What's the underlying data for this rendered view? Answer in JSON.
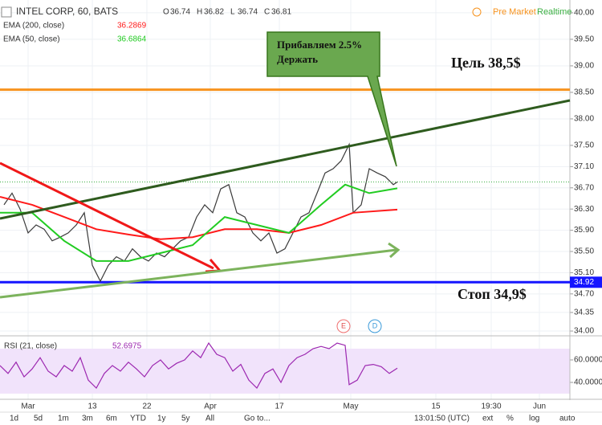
{
  "header": {
    "pre_market": "Pre Market",
    "realtime": "Realtime"
  },
  "chart_data": [
    {
      "type": "line",
      "title": "INTEL CORP, 60, BATS",
      "ohlc": [
        {
          "key": "O",
          "value": 36.74
        },
        {
          "key": "H",
          "value": 36.82
        },
        {
          "key": "L",
          "value": 36.74
        },
        {
          "key": "C",
          "value": 36.81
        }
      ],
      "xlim": [
        0,
        142
      ],
      "ylim": [
        33.94,
        40.12
      ],
      "xticks": [
        {
          "value": 7,
          "label": "Mar"
        },
        {
          "value": 23,
          "label": "13"
        },
        {
          "value": 36.6,
          "label": "22"
        },
        {
          "value": 52.4,
          "label": "Apr"
        },
        {
          "value": 69.6,
          "label": "17"
        },
        {
          "value": 87.4,
          "label": "May"
        },
        {
          "value": 108.6,
          "label": "15"
        },
        {
          "value": 122.4,
          "label": "19:30"
        },
        {
          "value": 134.4,
          "label": "Jun"
        }
      ],
      "yticks": [
        {
          "value": 40,
          "label": "40.00"
        },
        {
          "value": 39.5,
          "label": "39.50"
        },
        {
          "value": 39,
          "label": "39.00"
        },
        {
          "value": 38.5,
          "label": "38.50"
        },
        {
          "value": 38,
          "label": "38.00"
        },
        {
          "value": 37.5,
          "label": "37.50"
        },
        {
          "value": 37.1,
          "label": "37.10"
        },
        {
          "value": 36.7,
          "label": "36.70"
        },
        {
          "value": 36.3,
          "label": "36.30"
        },
        {
          "value": 35.9,
          "label": "35.90"
        },
        {
          "value": 35.5,
          "label": "35.50"
        },
        {
          "value": 35.1,
          "label": "35.10"
        },
        {
          "value": 34.7,
          "label": "34.70"
        },
        {
          "value": 34.35,
          "label": "34.35"
        },
        {
          "value": 34,
          "label": "34.00"
        }
      ],
      "grid": true,
      "series": [
        {
          "color": "#3a3a3a",
          "x": [
            1,
            3,
            5,
            7,
            9,
            11,
            13,
            15,
            17,
            19,
            21,
            23,
            25,
            27,
            29,
            31,
            33,
            35,
            37,
            39,
            41,
            43,
            45,
            47,
            49,
            51,
            53,
            55,
            57,
            59,
            61,
            63,
            65,
            67,
            69,
            71,
            73,
            75,
            77,
            79,
            81,
            83,
            85,
            87,
            88,
            90,
            92,
            94,
            96,
            98,
            99
          ],
          "values": [
            36.38,
            36.6,
            36.3,
            35.85,
            36.0,
            35.92,
            35.7,
            35.77,
            35.85,
            36.0,
            36.23,
            35.24,
            34.94,
            35.24,
            35.4,
            35.32,
            35.55,
            35.4,
            35.32,
            35.47,
            35.4,
            35.55,
            35.7,
            35.77,
            36.15,
            36.38,
            36.23,
            36.68,
            36.76,
            36.23,
            36.15,
            35.85,
            35.7,
            35.85,
            35.47,
            35.55,
            35.85,
            36.15,
            36.23,
            36.6,
            36.98,
            37.06,
            37.21,
            37.52,
            36.23,
            36.38,
            37.06,
            36.98,
            36.91,
            36.76,
            36.81
          ]
        },
        {
          "name": "EMA (200, close)",
          "last_value": 36.2869,
          "color": "#ff1a1a",
          "x": [
            0,
            8,
            16,
            24,
            32,
            40,
            48,
            56,
            64,
            72,
            80,
            88,
            99
          ],
          "values": [
            36.53,
            36.38,
            36.15,
            35.92,
            35.82,
            35.73,
            35.77,
            35.92,
            35.92,
            35.85,
            36.0,
            36.23,
            36.29
          ]
        },
        {
          "name": "EMA (50, close)",
          "last_value": 36.6864,
          "color": "#22cc22",
          "x": [
            0,
            8,
            16,
            24,
            32,
            40,
            48,
            56,
            64,
            72,
            80,
            86,
            92,
            99
          ],
          "values": [
            36.23,
            36.23,
            35.7,
            35.32,
            35.32,
            35.47,
            35.62,
            36.15,
            36.0,
            35.85,
            36.38,
            36.76,
            36.6,
            36.69
          ]
        }
      ],
      "price_line": {
        "value": 34.92,
        "color": "#1515ff"
      },
      "target_line": {
        "value": 38.55,
        "color": "#f7931e"
      },
      "annotations": {
        "target": "Цель 38,5$",
        "stop": "Стоп 34,9$",
        "callout": [
          "Прибавляем 2.5%",
          "Держать"
        ]
      },
      "events": [
        "E",
        "D"
      ]
    },
    {
      "type": "line",
      "title": "RSI (21, close)",
      "last_value": 52.6975,
      "xlim": [
        0,
        142
      ],
      "ylim": [
        26.4,
        80
      ],
      "yticks": [
        {
          "value": 60,
          "label": "60.0000"
        },
        {
          "value": 40,
          "label": "40.0000"
        }
      ],
      "band": [
        30,
        70
      ],
      "band_color": "#f1e3fb",
      "series": [
        {
          "color": "#9c27b0",
          "x": [
            0,
            2,
            4,
            6,
            8,
            10,
            12,
            14,
            16,
            18,
            20,
            22,
            24,
            26,
            28,
            30,
            32,
            34,
            36,
            38,
            40,
            42,
            44,
            46,
            48,
            50,
            52,
            54,
            56,
            58,
            60,
            62,
            64,
            66,
            68,
            70,
            72,
            74,
            76,
            78,
            80,
            82,
            84,
            86,
            87,
            89,
            91,
            93,
            95,
            97,
            99
          ],
          "values": [
            55,
            48,
            58,
            45,
            52,
            62,
            50,
            45,
            55,
            50,
            62,
            42,
            35,
            48,
            55,
            50,
            58,
            52,
            45,
            55,
            60,
            52,
            57,
            60,
            68,
            62,
            75,
            65,
            62,
            50,
            56,
            42,
            35,
            48,
            52,
            40,
            55,
            62,
            65,
            70,
            72,
            70,
            75,
            73,
            38,
            42,
            55,
            56,
            54,
            48,
            52.7
          ]
        }
      ]
    }
  ],
  "toolbar": {
    "ranges": [
      "1d",
      "5d",
      "1m",
      "3m",
      "6m",
      "YTD",
      "1y",
      "5y",
      "All"
    ],
    "goto": "Go to...",
    "clock": "13:01:50 (UTC)",
    "options": [
      "ext",
      "%",
      "log",
      "auto"
    ]
  }
}
